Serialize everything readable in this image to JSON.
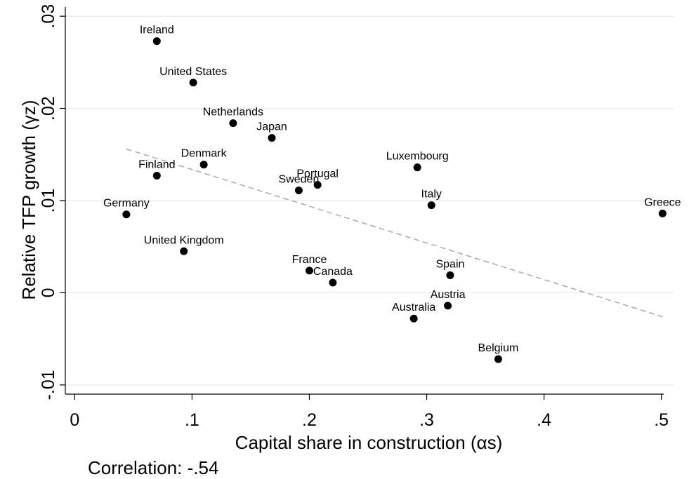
{
  "chart_data": {
    "type": "scatter",
    "x_label": "Capital share in construction (αs)",
    "y_label": "Relative TFP growth (γz)",
    "note": "Correlation: -.54",
    "color": "#000000",
    "grid": true,
    "xlim": [
      -0.008,
      0.502
    ],
    "ylim": [
      -0.011,
      0.031
    ],
    "xticks": [
      0,
      {
        "value": 0.1,
        "label": ".1"
      },
      {
        "value": 0.2,
        "label": ".2"
      },
      {
        "value": 0.3,
        "label": ".3"
      },
      {
        "value": 0.4,
        "label": ".4"
      },
      {
        "value": 0.5,
        "label": ".5"
      }
    ],
    "yticks": [
      {
        "value": -0.01,
        "label": "-.01"
      },
      0,
      {
        "value": 0.01,
        "label": ".01"
      },
      {
        "value": 0.02,
        "label": ".02"
      },
      {
        "value": 0.03,
        "label": ".03"
      }
    ],
    "points": [
      {
        "label": "Ireland",
        "x": 0.07,
        "y": 0.0273
      },
      {
        "label": "United States",
        "x": 0.101,
        "y": 0.0228
      },
      {
        "label": "Netherlands",
        "x": 0.135,
        "y": 0.0184
      },
      {
        "label": "Japan",
        "x": 0.168,
        "y": 0.0168
      },
      {
        "label": "Denmark",
        "x": 0.11,
        "y": 0.0139
      },
      {
        "label": "Luxembourg",
        "x": 0.292,
        "y": 0.0136
      },
      {
        "label": "Finland",
        "x": 0.07,
        "y": 0.0127
      },
      {
        "label": "Portugal",
        "x": 0.207,
        "y": 0.0117
      },
      {
        "label": "Sweden",
        "x": 0.191,
        "y": 0.0111
      },
      {
        "label": "Italy",
        "x": 0.304,
        "y": 0.0095
      },
      {
        "label": "Germany",
        "x": 0.044,
        "y": 0.0085
      },
      {
        "label": "Greece",
        "x": 0.501,
        "y": 0.0086
      },
      {
        "label": "United Kingdom",
        "x": 0.093,
        "y": 0.0045
      },
      {
        "label": "France",
        "x": 0.2,
        "y": 0.0024
      },
      {
        "label": "Canada",
        "x": 0.22,
        "y": 0.0011
      },
      {
        "label": "Spain",
        "x": 0.32,
        "y": 0.0019
      },
      {
        "label": "Austria",
        "x": 0.318,
        "y": -0.0014
      },
      {
        "label": "Australia",
        "x": 0.289,
        "y": -0.0028
      },
      {
        "label": "Belgium",
        "x": 0.361,
        "y": -0.0072
      }
    ],
    "fit_line": {
      "color": "#aaaaaa",
      "x": [
        0.044,
        0.501
      ],
      "y": [
        0.0156,
        -0.0026
      ]
    }
  }
}
